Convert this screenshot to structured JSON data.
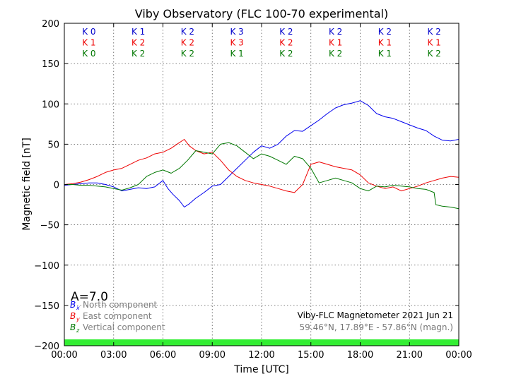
{
  "chart_data": {
    "type": "line",
    "title": "Viby Observatory (FLC 100-70 experimental)",
    "xlabel": "Time [UTC]",
    "ylabel": "Magnetic field [nT]",
    "x_unit": "hours UTC",
    "xlim": [
      0,
      24
    ],
    "ylim": [
      -200,
      200
    ],
    "grid": true,
    "x_tick_values": [
      0,
      3,
      6,
      9,
      12,
      15,
      18,
      21,
      24
    ],
    "x_tick_labels": [
      "00:00",
      "03:00",
      "06:00",
      "09:00",
      "12:00",
      "15:00",
      "18:00",
      "21:00",
      "00:00"
    ],
    "y_tick_values": [
      200,
      150,
      100,
      50,
      0,
      -50,
      -100,
      -150,
      -200
    ],
    "y_tick_labels": [
      "200",
      "150",
      "100",
      "50",
      "0",
      "−50",
      "−100",
      "−150",
      "−200"
    ],
    "k_index": {
      "rows": [
        {
          "color": "#0000cc",
          "labels": [
            "K 0",
            "K 1",
            "K 2",
            "K 3",
            "K 2",
            "K 2",
            "K 2",
            "K 2"
          ]
        },
        {
          "color": "#ee0000",
          "labels": [
            "K 1",
            "K 2",
            "K 2",
            "K 3",
            "K 2",
            "K 1",
            "K 1",
            "K 1"
          ]
        },
        {
          "color": "#007700",
          "labels": [
            "K 0",
            "K 2",
            "K 2",
            "K 1",
            "K 2",
            "K 2",
            "K 1",
            "K 2"
          ]
        }
      ]
    },
    "a_index": "A=7.0",
    "legend": {
      "placement": "bottom-left",
      "entries": [
        {
          "symbol": "B",
          "sub": "x",
          "text": "North component",
          "color": "#0000ee"
        },
        {
          "symbol": "B",
          "sub": "y",
          "text": "East component",
          "color": "#ee0000"
        },
        {
          "symbol": "B",
          "sub": "z",
          "text": "Vertical component",
          "color": "#007700"
        }
      ]
    },
    "info_line1": "Viby-FLC Magnetometer 2021 Jun 21",
    "info_line2": "59.46°N, 17.89°E - 57.86°N (magn.)",
    "baseline_bar_color": "#33ee33",
    "series": [
      {
        "id": "bx",
        "color": "#0000ee",
        "x": [
          0,
          0.5,
          1,
          1.5,
          2,
          2.5,
          3,
          3.5,
          4,
          4.5,
          5,
          5.5,
          6,
          6.3,
          6.6,
          7,
          7.3,
          7.6,
          8,
          8.5,
          9,
          9.5,
          10,
          10.5,
          11,
          11.5,
          12,
          12.5,
          13,
          13.5,
          14,
          14.5,
          15,
          15.5,
          16,
          16.5,
          17,
          17.5,
          18,
          18.5,
          19,
          19.5,
          20,
          20.5,
          21,
          21.5,
          22,
          22.5,
          23,
          23.5,
          24
        ],
        "y": [
          -1,
          0,
          1,
          2,
          2,
          0,
          -3,
          -8,
          -6,
          -4,
          -5,
          -3,
          5,
          -5,
          -12,
          -20,
          -28,
          -24,
          -17,
          -10,
          -2,
          0,
          10,
          20,
          30,
          40,
          48,
          45,
          50,
          60,
          67,
          66,
          73,
          80,
          88,
          95,
          99,
          101,
          104,
          98,
          88,
          84,
          82,
          78,
          74,
          70,
          67,
          60,
          55,
          54,
          56
        ]
      },
      {
        "id": "by",
        "color": "#ee0000",
        "x": [
          0,
          0.5,
          1,
          1.5,
          2,
          2.5,
          3,
          3.5,
          4,
          4.5,
          5,
          5.5,
          6,
          6.5,
          7,
          7.3,
          7.6,
          8,
          8.5,
          9,
          9.5,
          10,
          10.5,
          11,
          11.5,
          12,
          12.5,
          13,
          13.5,
          14,
          14.5,
          15,
          15.5,
          16,
          16.5,
          17,
          17.5,
          18,
          18.5,
          19,
          19.5,
          20,
          20.5,
          21,
          21.5,
          22,
          22.5,
          23,
          23.5,
          24
        ],
        "y": [
          0,
          1,
          3,
          6,
          10,
          15,
          18,
          20,
          25,
          30,
          33,
          38,
          40,
          45,
          52,
          56,
          48,
          42,
          38,
          40,
          30,
          18,
          10,
          5,
          2,
          0,
          -2,
          -5,
          -8,
          -10,
          0,
          25,
          28,
          25,
          22,
          20,
          18,
          12,
          2,
          -2,
          -5,
          -3,
          -8,
          -5,
          -2,
          2,
          5,
          8,
          10,
          9
        ]
      },
      {
        "id": "bz",
        "color": "#007700",
        "x": [
          0,
          0.5,
          1,
          1.5,
          2,
          2.5,
          3,
          3.5,
          4,
          4.5,
          5,
          5.5,
          6,
          6.5,
          7,
          7.5,
          8,
          8.5,
          9,
          9.5,
          10,
          10.5,
          11,
          11.5,
          12,
          12.5,
          13,
          13.5,
          14,
          14.5,
          15,
          15.5,
          16,
          16.5,
          17,
          17.5,
          18,
          18.5,
          19,
          19.5,
          20,
          20.5,
          21,
          21.5,
          22,
          22.5,
          22.6,
          23,
          23.5,
          24
        ],
        "y": [
          0,
          0,
          -1,
          -1,
          -2,
          -3,
          -5,
          -7,
          -4,
          0,
          10,
          15,
          18,
          14,
          20,
          30,
          42,
          40,
          38,
          50,
          52,
          48,
          40,
          32,
          38,
          35,
          30,
          25,
          35,
          32,
          20,
          2,
          5,
          8,
          5,
          2,
          -5,
          -8,
          -2,
          -3,
          -1,
          -2,
          -3,
          -5,
          -6,
          -10,
          -25,
          -27,
          -28,
          -30
        ]
      }
    ]
  }
}
